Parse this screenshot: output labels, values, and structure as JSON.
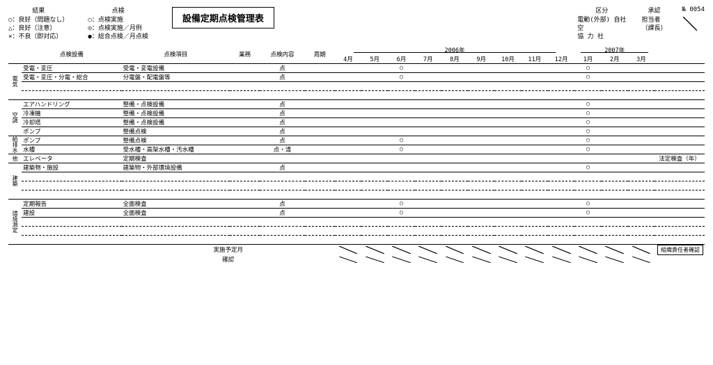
{
  "title": "設備定期点検管理表",
  "header_left1": {
    "heading": "結果",
    "lines": [
      "○：良好（問題なし）",
      "△：良好（注意）",
      "×：不良（即対応）"
    ]
  },
  "header_left2": {
    "heading": "点検",
    "lines": [
      "○：点検実施",
      "◎：点検実施／月例",
      "●：総合点検／月点検"
    ]
  },
  "header_right1": {
    "heading": "区分",
    "lines": [
      "電動(外部)  自社",
      "空",
      "協  力  社"
    ]
  },
  "header_right2": {
    "heading": "承認",
    "lines": [
      "担当者",
      "（課長）"
    ]
  },
  "header_right3": {
    "heading": "№ 0054"
  },
  "col_labels": {
    "side": "",
    "c1": "点検設備",
    "c2": "点検項目",
    "c3": "業務",
    "c4": "点検内容",
    "c5": "周期",
    "year1": "2006年",
    "year2": "2007年",
    "m": [
      "4月",
      "5月",
      "6月",
      "7月",
      "8月",
      "9月",
      "10月",
      "11月",
      "12月",
      "1月",
      "2月",
      "3月"
    ]
  },
  "groups": [
    {
      "side": "電気",
      "rows": [
        {
          "c1": "受電・変圧",
          "c2": "受電・変電設備",
          "c4": "点",
          "marks": [
            "",
            "",
            "○",
            "",
            "",
            "",
            "",
            "",
            "",
            "○",
            "",
            ""
          ]
        },
        {
          "c1": "受電・変圧・分電・総合",
          "c2": "分電盤・配電盤等",
          "c4": "点",
          "marks": [
            "",
            "",
            "○",
            "",
            "",
            "",
            "",
            "",
            "",
            "○",
            "",
            ""
          ]
        },
        {
          "c1": "",
          "c2": "",
          "c4": "",
          "marks": [
            "",
            "",
            "",
            "",
            "",
            "",
            "",
            "",
            "",
            "",
            "",
            ""
          ],
          "dash": true
        },
        {
          "c1": "",
          "c2": "",
          "c4": "",
          "marks": [
            "",
            "",
            "",
            "",
            "",
            "",
            "",
            "",
            "",
            "",
            "",
            ""
          ],
          "dash": true
        }
      ]
    },
    {
      "side": "空調",
      "rows": [
        {
          "c1": "エアハンドリング",
          "c2": "整備・点検設備",
          "c4": "点",
          "marks": [
            "",
            "",
            "",
            "",
            "",
            "",
            "",
            "",
            "",
            "○",
            "",
            ""
          ]
        },
        {
          "c1": "冷凍機",
          "c2": "整備・点検設備",
          "c4": "点",
          "marks": [
            "",
            "",
            "",
            "",
            "",
            "",
            "",
            "",
            "",
            "○",
            "",
            ""
          ]
        },
        {
          "c1": "冷却塔",
          "c2": "整備・点検設備",
          "c4": "点",
          "marks": [
            "",
            "",
            "",
            "",
            "",
            "",
            "",
            "",
            "",
            "○",
            "",
            ""
          ]
        },
        {
          "c1": "ポンプ",
          "c2": "整備点検",
          "c4": "点",
          "marks": [
            "",
            "",
            "",
            "",
            "",
            "",
            "",
            "",
            "",
            "○",
            "",
            ""
          ]
        }
      ]
    },
    {
      "side": "給排水",
      "rows": [
        {
          "c1": "ポンプ",
          "c2": "整備点検",
          "c4": "点",
          "marks": [
            "",
            "",
            "○",
            "",
            "",
            "",
            "",
            "",
            "",
            "○",
            "",
            ""
          ]
        },
        {
          "c1": "水槽",
          "c2": "受水槽・高架水槽・汚水槽",
          "c4": "点・清",
          "marks": [
            "",
            "",
            "○",
            "",
            "",
            "",
            "",
            "",
            "",
            "○",
            "",
            ""
          ]
        }
      ]
    },
    {
      "side": "他",
      "rows": [
        {
          "c1": "エレベータ",
          "c2": "定期検査",
          "c4": "",
          "marks": [
            "",
            "",
            "",
            "",
            "",
            "",
            "",
            "",
            "",
            "",
            "",
            ""
          ],
          "right": "法定検査（年）"
        }
      ]
    },
    {
      "side": "建築",
      "rows": [
        {
          "c1": "建築物・施設",
          "c2": "建築物・外部環境設備",
          "c4": "点",
          "marks": [
            "",
            "",
            "",
            "",
            "",
            "",
            "",
            "",
            "",
            "○",
            "",
            ""
          ]
        },
        {
          "c1": "",
          "c2": "",
          "c4": "",
          "marks": [
            "",
            "",
            "",
            "",
            "",
            "",
            "",
            "",
            "",
            "",
            "",
            ""
          ],
          "dash": true
        },
        {
          "c1": "",
          "c2": "",
          "c4": "",
          "marks": [
            "",
            "",
            "",
            "",
            "",
            "",
            "",
            "",
            "",
            "",
            "",
            ""
          ],
          "dash": true
        },
        {
          "c1": "",
          "c2": "",
          "c4": "",
          "marks": [
            "",
            "",
            "",
            "",
            "",
            "",
            "",
            "",
            "",
            "",
            "",
            ""
          ],
          "dash": true
        }
      ]
    },
    {
      "side": "環境測定",
      "rows": [
        {
          "c1": "定期報告",
          "c2": "全面検査",
          "c4": "点",
          "marks": [
            "",
            "",
            "○",
            "",
            "",
            "",
            "",
            "",
            "",
            "○",
            "",
            ""
          ]
        },
        {
          "c1": "建設",
          "c2": "全面検査",
          "c4": "点",
          "marks": [
            "",
            "",
            "○",
            "",
            "",
            "",
            "",
            "",
            "",
            "○",
            "",
            ""
          ]
        },
        {
          "c1": "",
          "c2": "",
          "c4": "",
          "marks": [
            "",
            "",
            "",
            "",
            "",
            "",
            "",
            "",
            "",
            "",
            "",
            ""
          ],
          "dash": true
        },
        {
          "c1": "",
          "c2": "",
          "c4": "",
          "marks": [
            "",
            "",
            "",
            "",
            "",
            "",
            "",
            "",
            "",
            "",
            "",
            ""
          ],
          "dash": true
        },
        {
          "c1": "",
          "c2": "",
          "c4": "",
          "marks": [
            "",
            "",
            "",
            "",
            "",
            "",
            "",
            "",
            "",
            "",
            "",
            ""
          ],
          "dash": true
        }
      ]
    }
  ],
  "footer": {
    "label1": "実施予定月",
    "label2": "確認",
    "seal": "組織責任者確認"
  }
}
